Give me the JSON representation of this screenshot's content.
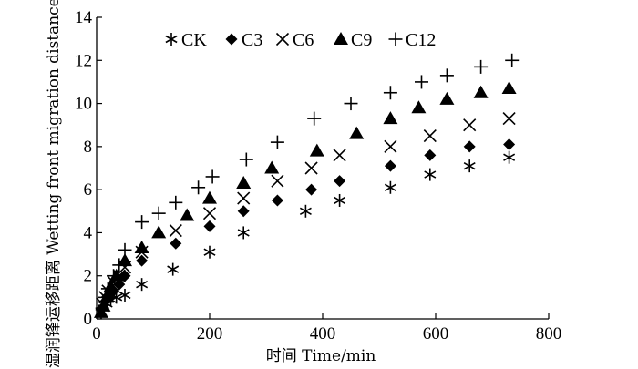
{
  "chart_data": {
    "type": "scatter",
    "xlabel": "时间 Time/min",
    "ylabel": "湿润锋运移距离 Wetting front migration distance/cm",
    "xlim": [
      0,
      800
    ],
    "ylim": [
      0,
      14
    ],
    "xticks": [
      "0",
      "200",
      "400",
      "600",
      "800"
    ],
    "yticks": [
      "0",
      "2",
      "4",
      "6",
      "8",
      "10",
      "12",
      "14"
    ],
    "grid": false,
    "legend_position": "top",
    "series": [
      {
        "name": "CK",
        "marker": "asterisk",
        "x": [
          8,
          12,
          18,
          25,
          35,
          50,
          80,
          135,
          200,
          260,
          370,
          430,
          520,
          590,
          660,
          730
        ],
        "y": [
          0.3,
          0.5,
          0.7,
          0.9,
          1.0,
          1.1,
          1.6,
          2.3,
          3.1,
          4.0,
          5.0,
          5.5,
          6.1,
          6.7,
          7.1,
          7.5
        ]
      },
      {
        "name": "C3",
        "marker": "diamond",
        "x": [
          10,
          15,
          20,
          30,
          40,
          50,
          80,
          140,
          200,
          260,
          320,
          380,
          430,
          520,
          590,
          660,
          730
        ],
        "y": [
          0.5,
          0.8,
          1.0,
          1.3,
          1.6,
          2.0,
          2.7,
          3.5,
          4.3,
          5.0,
          5.5,
          6.0,
          6.4,
          7.1,
          7.6,
          8.0,
          8.1
        ]
      },
      {
        "name": "C6",
        "marker": "x",
        "x": [
          10,
          15,
          20,
          30,
          40,
          50,
          80,
          140,
          200,
          260,
          320,
          380,
          430,
          520,
          590,
          660,
          730
        ],
        "y": [
          0.7,
          1.0,
          1.3,
          1.7,
          2.0,
          2.4,
          3.1,
          4.1,
          4.9,
          5.6,
          6.4,
          7.0,
          7.6,
          8.0,
          8.5,
          9.0,
          9.3
        ]
      },
      {
        "name": "C9",
        "marker": "triangle",
        "x": [
          8,
          12,
          18,
          25,
          35,
          50,
          80,
          110,
          160,
          200,
          260,
          310,
          390,
          460,
          520,
          570,
          620,
          680,
          730
        ],
        "y": [
          0.3,
          0.6,
          1.0,
          1.5,
          2.0,
          2.7,
          3.3,
          4.0,
          4.8,
          5.6,
          6.3,
          7.0,
          7.8,
          8.6,
          9.3,
          9.8,
          10.2,
          10.5,
          10.7
        ]
      },
      {
        "name": "C12",
        "marker": "plus",
        "x": [
          10,
          15,
          20,
          30,
          40,
          50,
          80,
          110,
          140,
          180,
          205,
          265,
          320,
          385,
          450,
          520,
          575,
          620,
          680,
          735
        ],
        "y": [
          0.5,
          1.0,
          1.4,
          2.0,
          2.5,
          3.2,
          4.5,
          4.9,
          5.4,
          6.1,
          6.6,
          7.4,
          8.2,
          9.3,
          10.0,
          10.5,
          11.0,
          11.3,
          11.7,
          12.0
        ]
      }
    ]
  }
}
